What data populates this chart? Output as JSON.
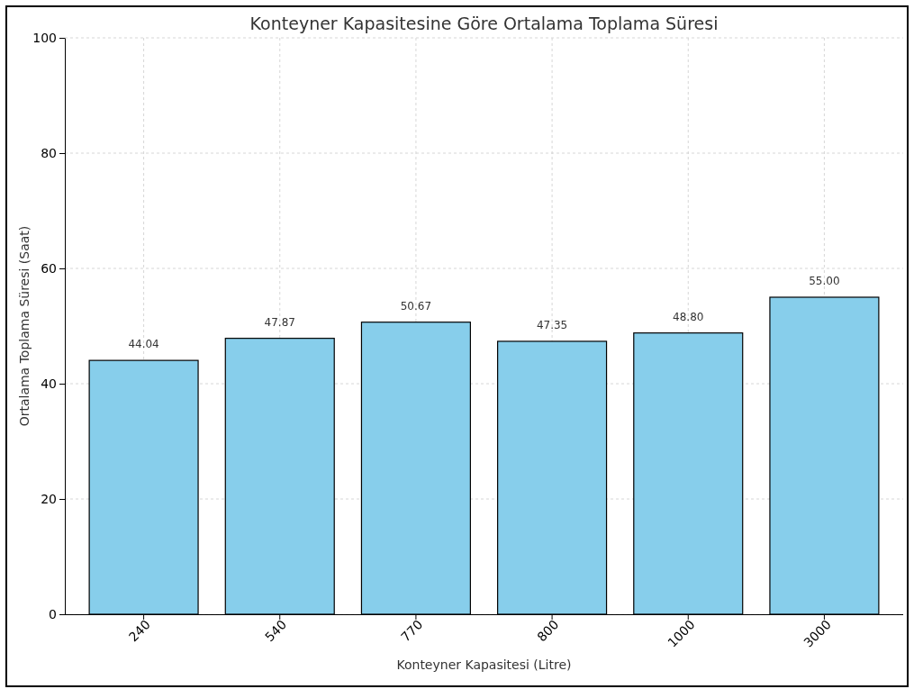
{
  "chart_data": {
    "type": "bar",
    "title": "Konteyner Kapasitesine Göre Ortalama Toplama Süresi",
    "xlabel": "Konteyner Kapasitesi (Litre)",
    "ylabel": "Ortalama Toplama Süresi (Saat)",
    "categories": [
      "240",
      "540",
      "770",
      "800",
      "1000",
      "3000"
    ],
    "values": [
      44.04,
      47.87,
      50.67,
      47.35,
      48.8,
      55.0
    ],
    "value_labels": [
      "44.04",
      "47.87",
      "50.67",
      "47.35",
      "48.80",
      "55.00"
    ],
    "color": "#87ceeb",
    "ylim": [
      0,
      100
    ],
    "yticks": [
      0,
      20,
      40,
      60,
      80,
      100
    ],
    "grid": true
  }
}
